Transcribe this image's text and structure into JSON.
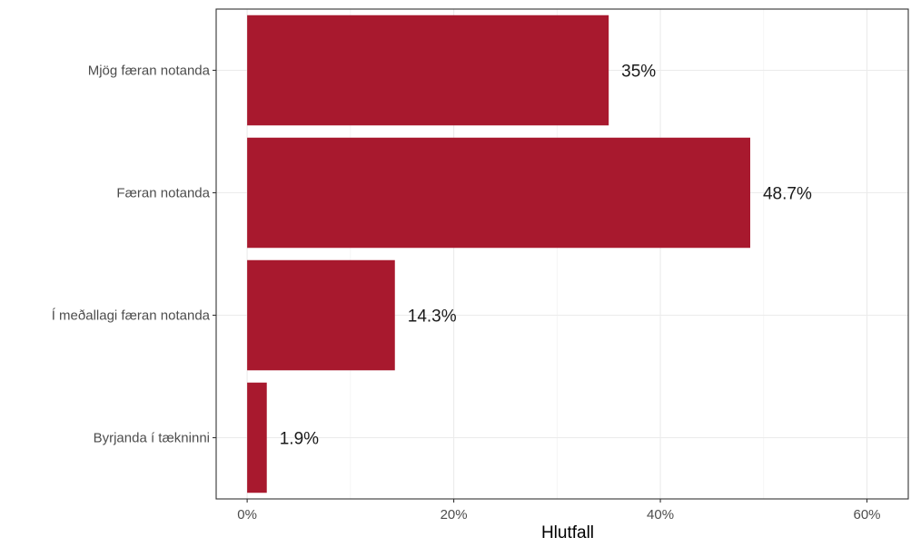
{
  "chart_data": {
    "type": "bar",
    "orientation": "horizontal",
    "categories": [
      "Mjög færan notanda",
      "Færan notanda",
      "Í meðallagi færan notanda",
      "Byrjanda í tækninni"
    ],
    "values": [
      35,
      48.7,
      14.3,
      1.9
    ],
    "value_labels": [
      "35%",
      "48.7%",
      "14.3%",
      "1.9%"
    ],
    "xlabel": "Hlutfall",
    "ylabel": "",
    "xlim": [
      -3,
      64
    ],
    "xticks": [
      0,
      20,
      40,
      60
    ],
    "xtick_labels": [
      "0%",
      "20%",
      "40%",
      "60%"
    ],
    "grid": true,
    "legend": "none",
    "bar_color": "#a8192e"
  }
}
